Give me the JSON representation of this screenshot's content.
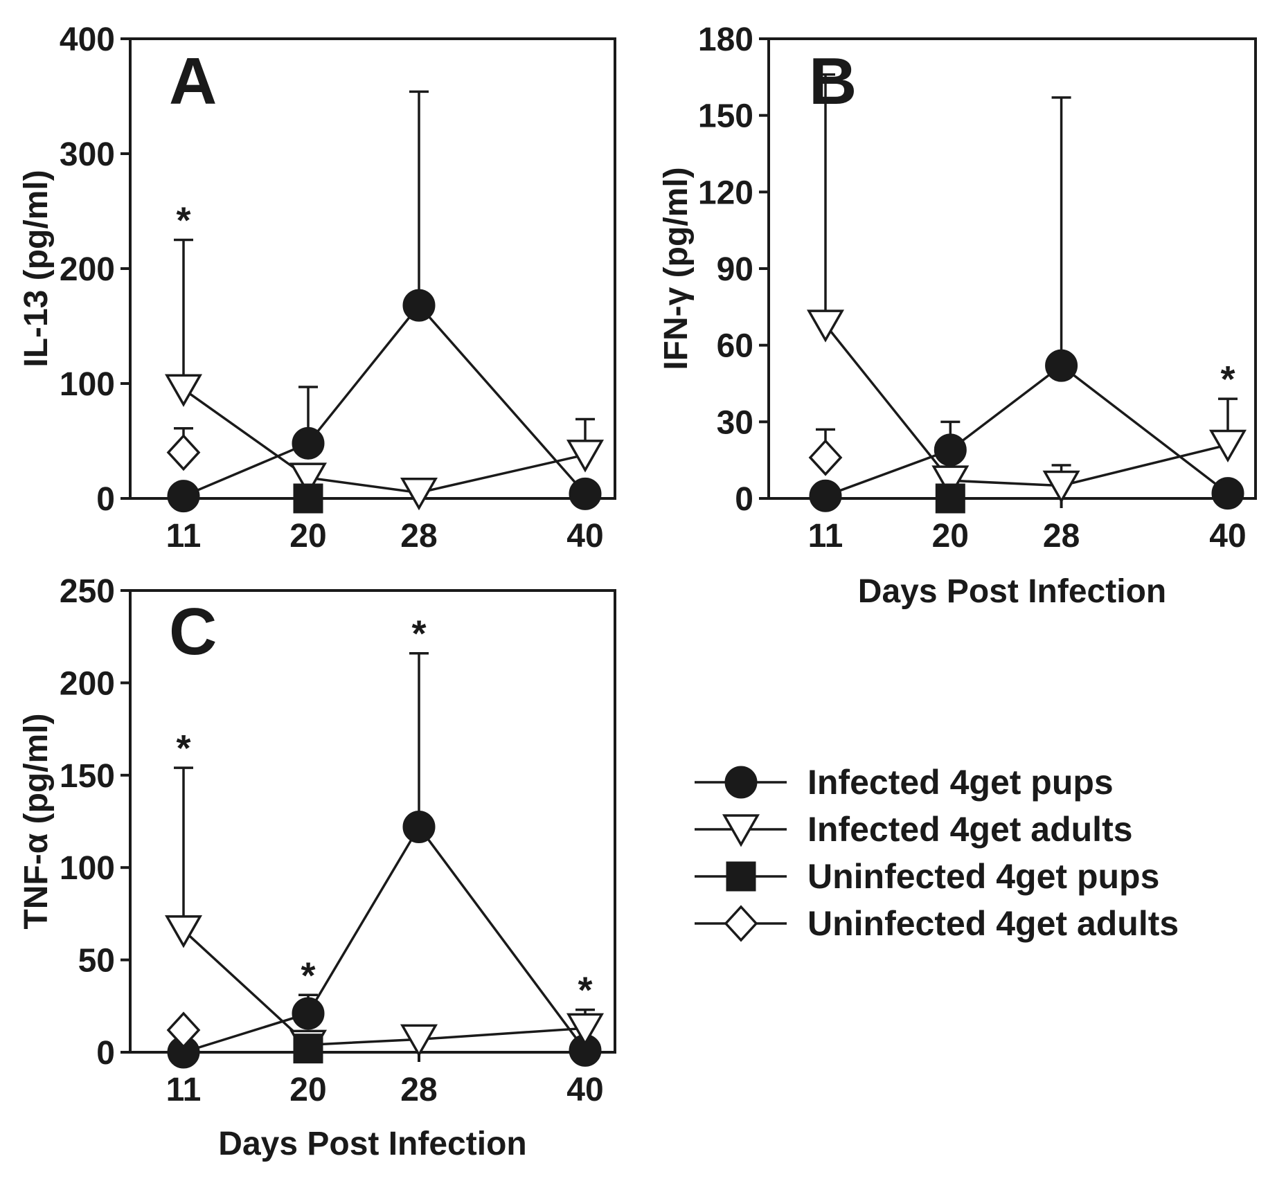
{
  "legend": {
    "items": [
      {
        "label": "Infected 4get pups",
        "marker": "filled-circle"
      },
      {
        "label": "Infected 4get adults",
        "marker": "open-triangle-down"
      },
      {
        "label": "Uninfected 4get pups",
        "marker": "filled-square"
      },
      {
        "label": "Uninfected 4get adults",
        "marker": "open-diamond"
      }
    ]
  },
  "chart_data": [
    {
      "panel": "A",
      "type": "line",
      "xlabel": "",
      "ylabel": "IL-13 (pg/ml)",
      "ylim": [
        0,
        400
      ],
      "yticks": [
        0,
        100,
        200,
        300,
        400
      ],
      "xticks": [
        11,
        20,
        28,
        40
      ],
      "series": [
        {
          "name": "Infected 4get pups",
          "marker": "filled-circle",
          "x": [
            11,
            20,
            28,
            40
          ],
          "y": [
            2,
            48,
            168,
            4
          ],
          "err_upper": [
            null,
            97,
            354,
            null
          ]
        },
        {
          "name": "Infected 4get adults",
          "marker": "open-triangle-down",
          "x": [
            11,
            20,
            28,
            40
          ],
          "y": [
            95,
            18,
            5,
            38
          ],
          "err_upper": [
            225,
            null,
            null,
            69
          ]
        },
        {
          "name": "Uninfected 4get pups",
          "marker": "filled-square",
          "x": [
            20
          ],
          "y": [
            0
          ],
          "err_upper": [
            null
          ]
        },
        {
          "name": "Uninfected 4get adults",
          "marker": "open-diamond",
          "x": [
            11
          ],
          "y": [
            40
          ],
          "err_upper": [
            61
          ]
        }
      ],
      "annotations": [
        {
          "text": "*",
          "x": 11,
          "y": 225
        }
      ]
    },
    {
      "panel": "B",
      "type": "line",
      "xlabel": "Days Post Infection",
      "ylabel": "IFN-γ (pg/ml)",
      "ylim": [
        0,
        180
      ],
      "yticks": [
        0,
        30,
        60,
        90,
        120,
        150,
        180
      ],
      "xticks": [
        11,
        20,
        28,
        40
      ],
      "series": [
        {
          "name": "Infected 4get pups",
          "marker": "filled-circle",
          "x": [
            11,
            20,
            28,
            40
          ],
          "y": [
            1,
            19,
            52,
            2
          ],
          "err_upper": [
            null,
            30,
            157,
            null
          ]
        },
        {
          "name": "Infected 4get adults",
          "marker": "open-triangle-down",
          "x": [
            11,
            20,
            28,
            40
          ],
          "y": [
            68,
            7,
            5,
            21
          ],
          "err_upper": [
            166,
            null,
            13,
            39
          ]
        },
        {
          "name": "Uninfected 4get pups",
          "marker": "filled-square",
          "x": [
            20
          ],
          "y": [
            0
          ],
          "err_upper": [
            null
          ]
        },
        {
          "name": "Uninfected 4get adults",
          "marker": "open-diamond",
          "x": [
            11
          ],
          "y": [
            16
          ],
          "err_upper": [
            27
          ]
        }
      ],
      "annotations": [
        {
          "text": "*",
          "x": 40,
          "y": 39
        }
      ]
    },
    {
      "panel": "C",
      "type": "line",
      "xlabel": "Days Post Infection",
      "ylabel": "TNF-α (pg/ml)",
      "ylim": [
        0,
        250
      ],
      "yticks": [
        0,
        50,
        100,
        150,
        200,
        250
      ],
      "xticks": [
        11,
        20,
        28,
        40
      ],
      "series": [
        {
          "name": "Infected 4get pups",
          "marker": "filled-circle",
          "x": [
            11,
            20,
            28,
            40
          ],
          "y": [
            0,
            21,
            122,
            1
          ],
          "err_upper": [
            null,
            31,
            216,
            null
          ]
        },
        {
          "name": "Infected 4get adults",
          "marker": "open-triangle-down",
          "x": [
            11,
            20,
            28,
            40
          ],
          "y": [
            66,
            4,
            7,
            13
          ],
          "err_upper": [
            154,
            null,
            null,
            23
          ]
        },
        {
          "name": "Uninfected 4get pups",
          "marker": "filled-square",
          "x": [
            20
          ],
          "y": [
            2
          ],
          "err_upper": [
            null
          ]
        },
        {
          "name": "Uninfected 4get adults",
          "marker": "open-diamond",
          "x": [
            11
          ],
          "y": [
            12
          ],
          "err_upper": [
            null
          ]
        }
      ],
      "annotations": [
        {
          "text": "*",
          "x": 11,
          "y": 154
        },
        {
          "text": "*",
          "x": 20,
          "y": 31
        },
        {
          "text": "*",
          "x": 28,
          "y": 216
        },
        {
          "text": "*",
          "x": 40,
          "y": 23
        }
      ]
    }
  ]
}
